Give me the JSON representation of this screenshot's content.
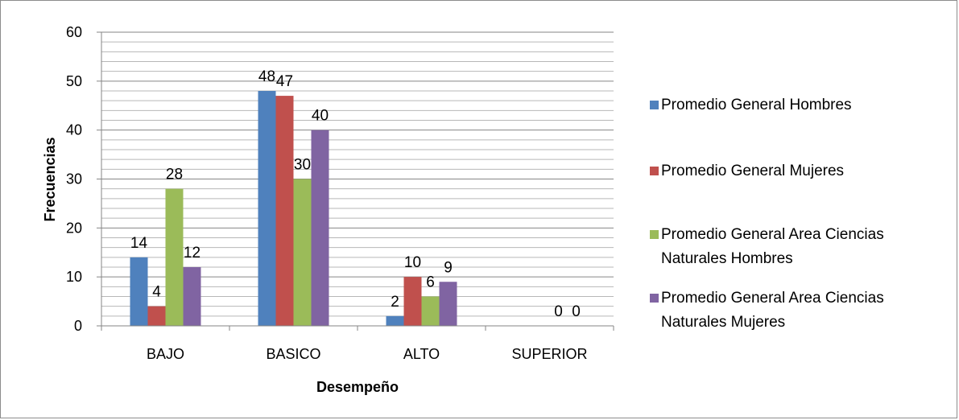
{
  "chart_data": {
    "type": "bar",
    "xlabel": "Desempeño",
    "ylabel": "Frecuencias",
    "ylim": [
      0,
      60
    ],
    "yticks": [
      0,
      10,
      20,
      30,
      40,
      50,
      60
    ],
    "minor_grid_step": 2,
    "grid": true,
    "legend_position": "right",
    "categories": [
      "BAJO",
      "BASICO",
      "ALTO",
      "SUPERIOR"
    ],
    "series": [
      {
        "name": "Promedio General Hombres",
        "color": "#4f81bd",
        "values": [
          14,
          48,
          2,
          null
        ],
        "labels": [
          "14",
          "48",
          "2",
          ""
        ]
      },
      {
        "name": "Promedio General Mujeres",
        "color": "#c0504d",
        "values": [
          4,
          47,
          10,
          null
        ],
        "labels": [
          "4",
          "47",
          "10",
          ""
        ]
      },
      {
        "name": "Promedio General Area Ciencias Naturales Hombres",
        "color": "#9bbb59",
        "values": [
          28,
          30,
          6,
          0
        ],
        "labels": [
          "28",
          "30",
          "6",
          "0"
        ]
      },
      {
        "name": "Promedio General Area Ciencias Naturales Mujeres",
        "color": "#8064a2",
        "values": [
          12,
          40,
          9,
          0
        ],
        "labels": [
          "12",
          "40",
          "9",
          "0"
        ]
      }
    ],
    "legend_lines": [
      [
        "Promedio General Hombres"
      ],
      [
        "Promedio General Mujeres"
      ],
      [
        "Promedio General Area Ciencias",
        "Naturales Hombres"
      ],
      [
        "Promedio General Area Ciencias",
        "Naturales Mujeres"
      ]
    ]
  }
}
